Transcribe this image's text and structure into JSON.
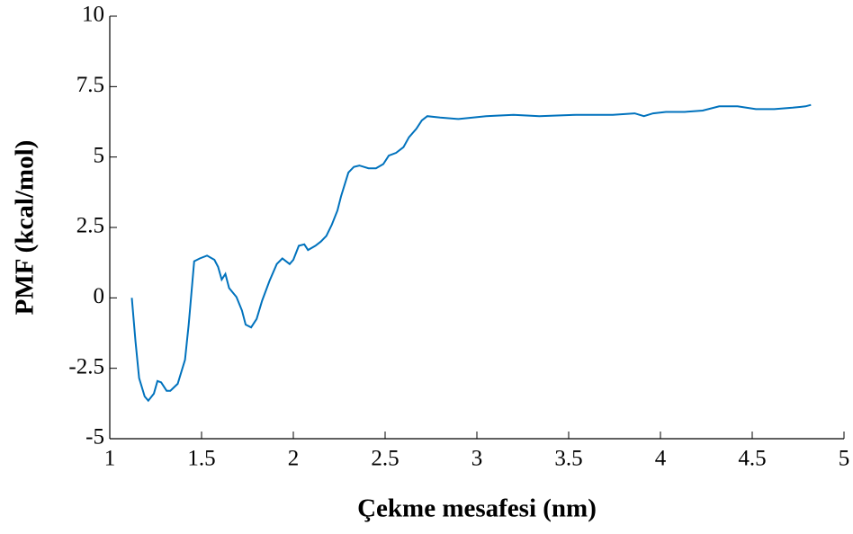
{
  "chart_data": {
    "type": "line",
    "xlabel": "Çekme mesafesi (nm)",
    "ylabel": "PMF (kcal/mol)",
    "xlim": [
      1,
      5
    ],
    "xticks": [
      1,
      1.5,
      2,
      2.5,
      3,
      3.5,
      4,
      4.5,
      5
    ],
    "ylim": [
      -5,
      10
    ],
    "yticks": [
      -5,
      -2.5,
      0,
      2.5,
      5,
      7.5,
      10
    ],
    "grid": false,
    "series": [
      {
        "color": "#0072bd",
        "x": [
          1.12,
          1.14,
          1.16,
          1.19,
          1.21,
          1.24,
          1.26,
          1.28,
          1.31,
          1.33,
          1.37,
          1.41,
          1.43,
          1.46,
          1.49,
          1.53,
          1.57,
          1.59,
          1.61,
          1.63,
          1.65,
          1.69,
          1.72,
          1.74,
          1.77,
          1.8,
          1.83,
          1.87,
          1.91,
          1.94,
          1.98,
          2.0,
          2.03,
          2.06,
          2.08,
          2.12,
          2.15,
          2.18,
          2.21,
          2.24,
          2.26,
          2.3,
          2.33,
          2.36,
          2.41,
          2.45,
          2.49,
          2.52,
          2.56,
          2.6,
          2.63,
          2.67,
          2.7,
          2.73,
          2.8,
          2.9,
          3.05,
          3.2,
          3.34,
          3.54,
          3.74,
          3.86,
          3.91,
          3.96,
          4.03,
          4.13,
          4.23,
          4.32,
          4.42,
          4.52,
          4.62,
          4.72,
          4.79,
          4.82
        ],
        "values": [
          0,
          -1.55,
          -2.85,
          -3.5,
          -3.65,
          -3.4,
          -2.95,
          -3.0,
          -3.3,
          -3.3,
          -3.05,
          -2.2,
          -0.95,
          1.3,
          1.4,
          1.5,
          1.35,
          1.1,
          0.65,
          0.85,
          0.35,
          0.03,
          -0.45,
          -0.95,
          -1.05,
          -0.75,
          -0.1,
          0.6,
          1.2,
          1.4,
          1.2,
          1.35,
          1.85,
          1.9,
          1.7,
          1.85,
          2.0,
          2.2,
          2.6,
          3.1,
          3.6,
          4.45,
          4.65,
          4.7,
          4.6,
          4.6,
          4.75,
          5.05,
          5.15,
          5.35,
          5.7,
          6.0,
          6.3,
          6.45,
          6.4,
          6.35,
          6.45,
          6.5,
          6.45,
          6.5,
          6.5,
          6.55,
          6.45,
          6.55,
          6.6,
          6.6,
          6.65,
          6.8,
          6.8,
          6.7,
          6.7,
          6.75,
          6.8,
          6.85
        ]
      }
    ]
  }
}
